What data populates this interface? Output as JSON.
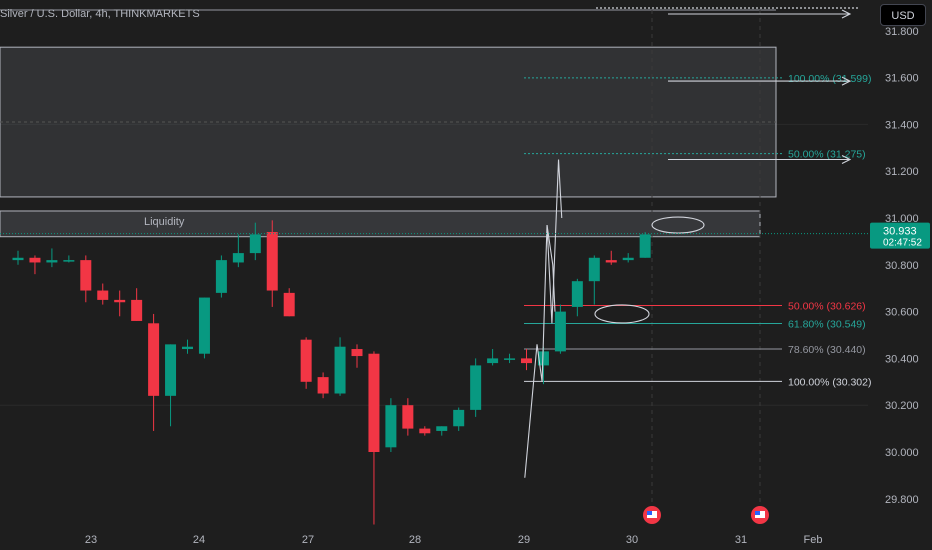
{
  "header": {
    "title": "Silver / U.S. Dollar, 4h, THINKMARKETS",
    "currency_button": "USD"
  },
  "price_badge": {
    "price": "30.933",
    "countdown": "02:47:52",
    "color": "#089981"
  },
  "zones": {
    "liquidity_label": "Liquidity"
  },
  "colors": {
    "background": "#1e1e1e",
    "bull": "#089981",
    "bear": "#f23645",
    "fib_red": "#f23645",
    "fib_teal": "#26a69a",
    "fib_gray": "#9598a1",
    "fib_white": "#d1d4dc"
  },
  "icons": [
    "us-flag-event-icon",
    "us-flag-event-icon"
  ],
  "chart_data": {
    "type": "candlestick",
    "title": "Silver / U.S. Dollar, 4h, THINKMARKETS",
    "ylim": [
      29.68,
      31.9
    ],
    "y_ticks": [
      "29.800",
      "30.000",
      "30.200",
      "30.400",
      "30.600",
      "30.800",
      "31.000",
      "31.200",
      "31.400",
      "31.600",
      "31.800"
    ],
    "x_ticks": [
      "23",
      "24",
      "27",
      "28",
      "29",
      "30",
      "31",
      "Feb"
    ],
    "grid": false,
    "candles": [
      {
        "o": 30.82,
        "h": 30.86,
        "l": 30.8,
        "c": 30.83
      },
      {
        "o": 30.83,
        "h": 30.84,
        "l": 30.76,
        "c": 30.81
      },
      {
        "o": 30.81,
        "h": 30.87,
        "l": 30.79,
        "c": 30.82
      },
      {
        "o": 30.82,
        "h": 30.84,
        "l": 30.81,
        "c": 30.82
      },
      {
        "o": 30.82,
        "h": 30.84,
        "l": 30.64,
        "c": 30.69
      },
      {
        "o": 30.69,
        "h": 30.72,
        "l": 30.63,
        "c": 30.65
      },
      {
        "o": 30.65,
        "h": 30.69,
        "l": 30.58,
        "c": 30.64
      },
      {
        "o": 30.65,
        "h": 30.7,
        "l": 30.56,
        "c": 30.56
      },
      {
        "o": 30.55,
        "h": 30.59,
        "l": 30.09,
        "c": 30.24
      },
      {
        "o": 30.24,
        "h": 30.46,
        "l": 30.11,
        "c": 30.46
      },
      {
        "o": 30.44,
        "h": 30.48,
        "l": 30.42,
        "c": 30.45
      },
      {
        "o": 30.42,
        "h": 30.66,
        "l": 30.4,
        "c": 30.66
      },
      {
        "o": 30.68,
        "h": 30.84,
        "l": 30.66,
        "c": 30.82
      },
      {
        "o": 30.81,
        "h": 30.93,
        "l": 30.79,
        "c": 30.85
      },
      {
        "o": 30.85,
        "h": 30.98,
        "l": 30.82,
        "c": 30.93
      },
      {
        "o": 30.94,
        "h": 30.99,
        "l": 30.62,
        "c": 30.69
      },
      {
        "o": 30.68,
        "h": 30.7,
        "l": 30.58,
        "c": 30.58
      },
      {
        "o": 30.48,
        "h": 30.49,
        "l": 30.27,
        "c": 30.3
      },
      {
        "o": 30.32,
        "h": 30.34,
        "l": 30.23,
        "c": 30.25
      },
      {
        "o": 30.25,
        "h": 30.49,
        "l": 30.24,
        "c": 30.45
      },
      {
        "o": 30.44,
        "h": 30.46,
        "l": 30.36,
        "c": 30.41
      },
      {
        "o": 30.42,
        "h": 30.43,
        "l": 29.69,
        "c": 30.0
      },
      {
        "o": 30.02,
        "h": 30.23,
        "l": 30.0,
        "c": 30.2
      },
      {
        "o": 30.2,
        "h": 30.23,
        "l": 30.07,
        "c": 30.1
      },
      {
        "o": 30.1,
        "h": 30.11,
        "l": 30.07,
        "c": 30.08
      },
      {
        "o": 30.09,
        "h": 30.11,
        "l": 30.07,
        "c": 30.11
      },
      {
        "o": 30.11,
        "h": 30.19,
        "l": 30.09,
        "c": 30.18
      },
      {
        "o": 30.18,
        "h": 30.4,
        "l": 30.15,
        "c": 30.37
      },
      {
        "o": 30.38,
        "h": 30.44,
        "l": 30.37,
        "c": 30.4
      },
      {
        "o": 30.4,
        "h": 30.42,
        "l": 30.38,
        "c": 30.4
      },
      {
        "o": 30.4,
        "h": 30.44,
        "l": 30.35,
        "c": 30.38
      },
      {
        "o": 30.37,
        "h": 30.45,
        "l": 30.29,
        "c": 30.43
      },
      {
        "o": 30.43,
        "h": 30.63,
        "l": 30.42,
        "c": 30.6
      },
      {
        "o": 30.62,
        "h": 30.74,
        "l": 30.58,
        "c": 30.73
      },
      {
        "o": 30.73,
        "h": 30.84,
        "l": 30.63,
        "c": 30.83
      },
      {
        "o": 30.82,
        "h": 30.86,
        "l": 30.8,
        "c": 30.81
      },
      {
        "o": 30.82,
        "h": 30.85,
        "l": 30.81,
        "c": 30.83
      },
      {
        "o": 30.83,
        "h": 30.94,
        "l": 30.83,
        "c": 30.93
      }
    ],
    "fib_levels": [
      {
        "label": "100.00% (31.599)",
        "value": 31.599,
        "color": "#26a69a"
      },
      {
        "label": "50.00% (31.275)",
        "value": 31.275,
        "color": "#26a69a"
      },
      {
        "label": "50.00% (30.626)",
        "value": 30.626,
        "color": "#f23645"
      },
      {
        "label": "61.80% (30.549)",
        "value": 30.549,
        "color": "#26a69a"
      },
      {
        "label": "78.60% (30.440)",
        "value": 30.44,
        "color": "#9598a1"
      },
      {
        "label": "100.00% (30.302)",
        "value": 30.302,
        "color": "#d1d4dc"
      }
    ],
    "supply_zone": {
      "top": 31.73,
      "bottom": 31.09
    },
    "liquidity_zone": {
      "top": 31.03,
      "bottom": 30.92
    },
    "path_annotation": [
      [
        29.9,
        29.89
      ],
      [
        30.62,
        30.46
      ],
      [
        30.92,
        30.3
      ],
      [
        31.21,
        30.97
      ],
      [
        31.5,
        30.55
      ],
      [
        31.89,
        31.25
      ],
      [
        32.08,
        31.0
      ]
    ],
    "alt_path_annotation": [
      [
        31.21,
        30.97
      ],
      [
        31.55,
        30.8
      ],
      [
        31.68,
        30.6
      ]
    ]
  }
}
